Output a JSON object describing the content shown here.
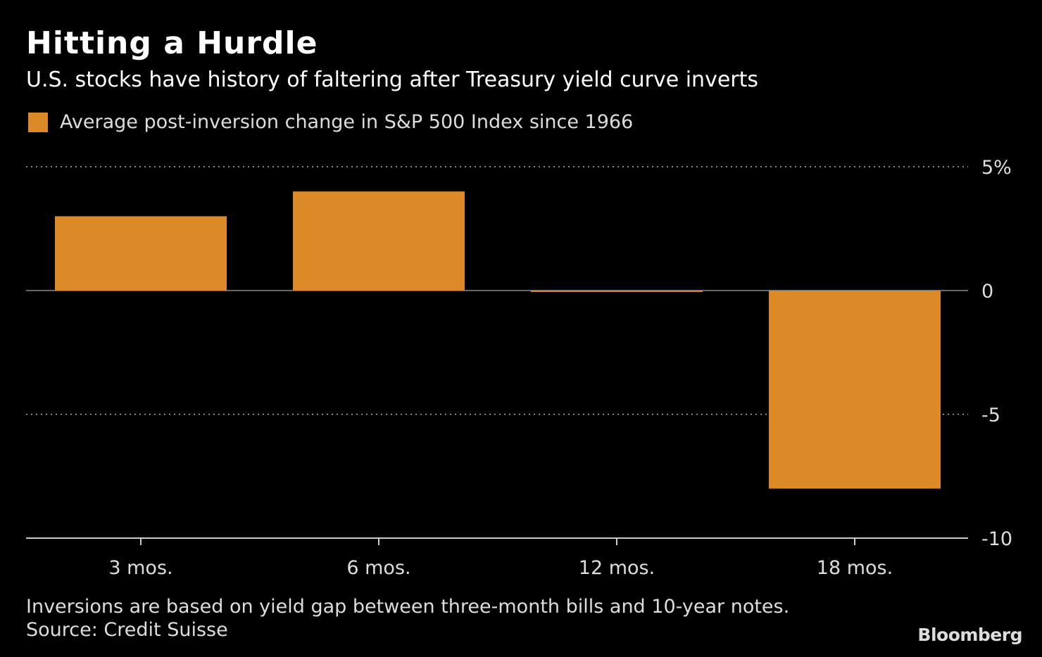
{
  "chart_data": {
    "type": "bar",
    "title": "Hitting a Hurdle",
    "subtitle": "U.S. stocks have history of faltering after Treasury yield curve inverts",
    "legend": [
      {
        "name": "Average post-inversion change in S&P 500 Index since 1966",
        "color": "#dc8a27"
      }
    ],
    "categories": [
      "3 mos.",
      "6 mos.",
      "12 mos.",
      "18 mos."
    ],
    "series": [
      {
        "name": "Average post-inversion change in S&P 500 Index since 1966",
        "values": [
          3.0,
          4.0,
          -0.05,
          -8.0
        ]
      }
    ],
    "ylim": [
      -10,
      5
    ],
    "yticks": [
      {
        "value": 5,
        "label": "5%"
      },
      {
        "value": 0,
        "label": "0"
      },
      {
        "value": -5,
        "label": "-5"
      },
      {
        "value": -10,
        "label": "-10"
      }
    ],
    "grid": true,
    "legend_placement": "top-left",
    "bar_color": "#dc8a27",
    "note": "Inversions are based on yield gap between three-month bills and 10-year notes.",
    "source": "Source: Credit Suisse"
  },
  "brand": "Bloomberg"
}
